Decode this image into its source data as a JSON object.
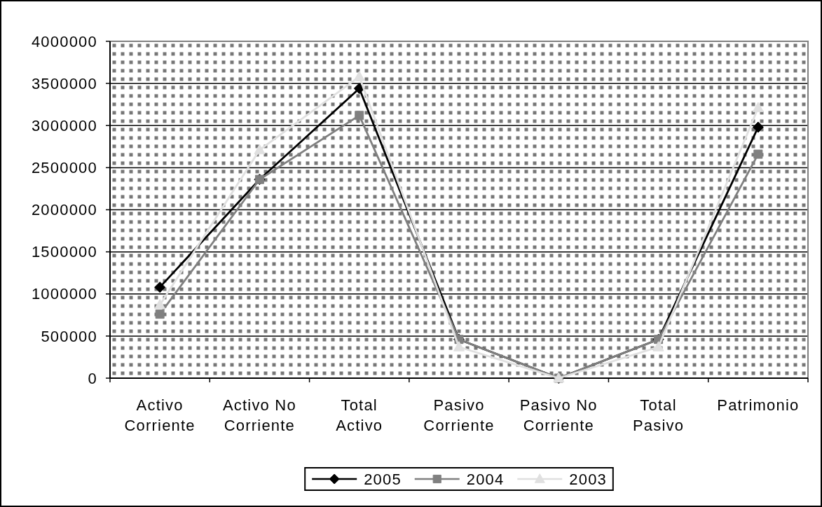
{
  "chart_data": {
    "type": "line",
    "categories": [
      "Activo Corriente",
      "Activo No Corriente",
      "Total Activo",
      "Pasivo Corriente",
      "Pasivo No Corriente",
      "Total Pasivo",
      "Patrimonio"
    ],
    "series": [
      {
        "name": "2005",
        "color": "#000000",
        "marker": "diamond",
        "values": [
          1080000,
          2360000,
          3440000,
          460000,
          0,
          460000,
          2980000
        ]
      },
      {
        "name": "2004",
        "color": "#808080",
        "marker": "square",
        "values": [
          760000,
          2360000,
          3120000,
          460000,
          0,
          460000,
          2660000
        ]
      },
      {
        "name": "2003",
        "color": "#e0e0e0",
        "marker": "triangle",
        "values": [
          870000,
          2710000,
          3580000,
          370000,
          0,
          370000,
          3210000
        ]
      }
    ],
    "ylim": [
      0,
      4000000
    ],
    "yticks": [
      0,
      500000,
      1000000,
      1500000,
      2000000,
      2500000,
      3000000,
      3500000,
      4000000
    ],
    "grid": "y",
    "legend": "bottom",
    "line_style": "solid"
  }
}
